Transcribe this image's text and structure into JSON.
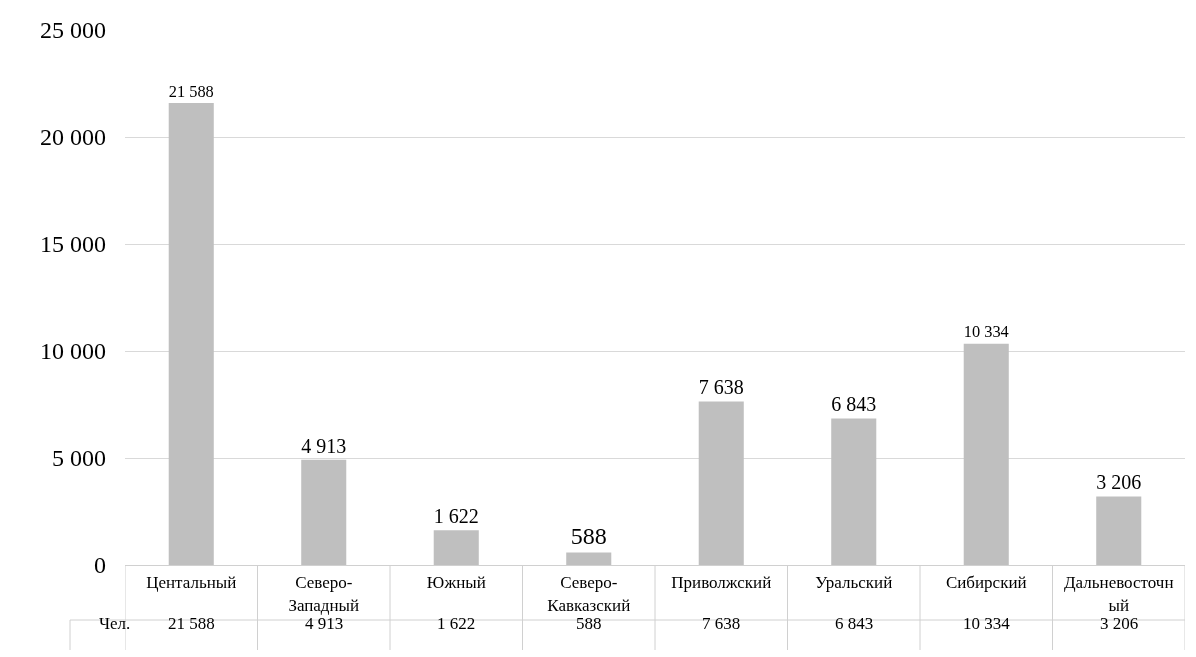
{
  "chart_data": {
    "type": "bar",
    "categories": [
      "Центальный",
      "Северо-Западный",
      "Южный",
      "Северо-Кавказский",
      "Приволжский",
      "Уральский",
      "Сибирский",
      "Дальневосточный"
    ],
    "series": [
      {
        "name": "Чел.",
        "color": "#bfbfbf",
        "values": [
          21588,
          4913,
          1622,
          588,
          7638,
          6843,
          10334,
          3206
        ],
        "value_labels": [
          "21 588",
          "4 913",
          "1 622",
          "588",
          "7 638",
          "6 843",
          "10 334",
          "3 206"
        ]
      }
    ],
    "ylim": [
      0,
      25000
    ],
    "yticks": [
      {
        "value": 0,
        "label": "0"
      },
      {
        "value": 5000,
        "label": "5 000"
      },
      {
        "value": 10000,
        "label": "10 000"
      },
      {
        "value": 15000,
        "label": "15 000"
      },
      {
        "value": 20000,
        "label": "20 000"
      },
      {
        "value": 25000,
        "label": "25 000"
      }
    ],
    "grid": "y",
    "legend": false,
    "data_labels": true
  }
}
